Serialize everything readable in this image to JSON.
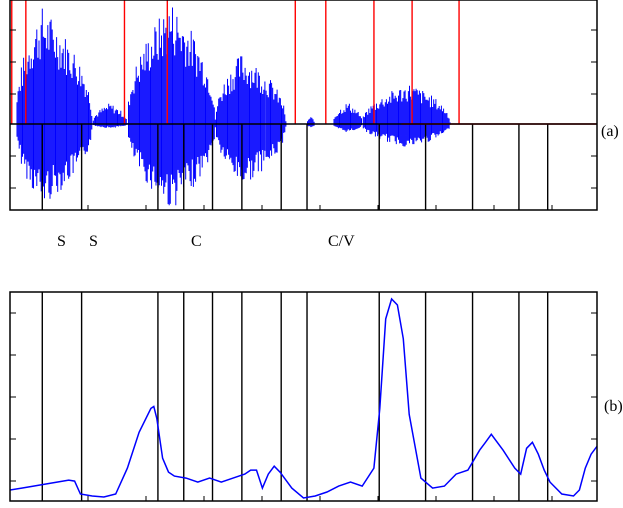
{
  "chart_data": [
    {
      "panel_label": "(a)",
      "type": "line",
      "description_kind": "waveform",
      "x_range": [
        0,
        100
      ],
      "y_range": [
        -1,
        1
      ],
      "grid": false,
      "waveform_color": "#0000ff",
      "marker_color": "#ff0000",
      "segment_color": "#000000",
      "waveform_segments": [
        {
          "x": [
            0.0,
            1.0
          ],
          "amp_top": 0.0,
          "amp_bot": 0.0
        },
        {
          "x": [
            1.0,
            14.0
          ],
          "amp_top": 0.95,
          "amp_bot": 0.95,
          "peak_at": 5.5
        },
        {
          "x": [
            14.0,
            20.0
          ],
          "amp_top": 0.17,
          "amp_bot": 0.05
        },
        {
          "x": [
            20.0,
            35.0
          ],
          "amp_top": 1.0,
          "amp_bot": 1.0,
          "peak_at": 27.5
        },
        {
          "x": [
            35.0,
            47.0
          ],
          "amp_top": 0.58,
          "amp_bot": 0.72,
          "peak_at": 39.5
        },
        {
          "x": [
            50.5,
            52.0
          ],
          "amp_top": 0.06,
          "amp_bot": 0.04
        },
        {
          "x": [
            55.0,
            60.0
          ],
          "amp_top": 0.18,
          "amp_bot": 0.1
        },
        {
          "x": [
            60.0,
            75.0
          ],
          "amp_top": 0.33,
          "amp_bot": 0.28,
          "peak_at": 68
        }
      ],
      "red_markers": [
        0.3,
        2.7,
        19.5,
        26.8,
        48.6,
        53.8,
        62.0,
        68.5,
        76.5
      ],
      "red_baseline_segment": [
        66.7,
        100
      ],
      "segment_boundaries": [
        5.5,
        12.2,
        25.2,
        29.6,
        34.5,
        39.5,
        46.2,
        50.6,
        62.9,
        70.8,
        78.8,
        86.7,
        91.6
      ],
      "segment_labels": [
        {
          "text": "S",
          "x": 5.5
        },
        {
          "text": "S",
          "x": 11.2
        },
        {
          "text": "C",
          "x": 30.0
        },
        {
          "text": "C/V",
          "x": 62.0
        }
      ]
    },
    {
      "panel_label": "(b)",
      "type": "line",
      "x_range": [
        0,
        100
      ],
      "y_range": [
        0,
        1
      ],
      "grid": false,
      "line_color": "#0000ff",
      "segment_boundaries": [
        5.5,
        12.2,
        25.2,
        29.6,
        34.5,
        39.5,
        46.2,
        50.6,
        62.9,
        70.8,
        78.8,
        86.7,
        91.6
      ],
      "x": [
        0,
        2,
        4,
        6,
        8,
        10,
        11,
        12,
        14,
        16,
        18,
        20,
        22,
        24,
        24.5,
        25,
        26,
        27,
        28,
        30,
        32,
        34,
        36,
        38,
        40,
        41,
        42,
        43,
        44,
        45,
        46,
        48,
        50,
        52,
        54,
        56,
        58,
        60,
        62,
        63,
        64,
        65,
        66,
        67,
        68,
        70,
        72,
        74,
        76,
        78,
        80,
        81,
        82,
        84,
        86,
        87,
        88,
        89,
        90,
        91,
        92,
        94,
        96,
        97,
        98,
        99,
        100
      ],
      "y": [
        0.04,
        0.05,
        0.06,
        0.07,
        0.08,
        0.09,
        0.085,
        0.02,
        0.01,
        0.005,
        0.02,
        0.15,
        0.33,
        0.45,
        0.46,
        0.4,
        0.2,
        0.13,
        0.11,
        0.1,
        0.08,
        0.1,
        0.08,
        0.1,
        0.12,
        0.14,
        0.14,
        0.05,
        0.12,
        0.16,
        0.13,
        0.05,
        0.0,
        0.01,
        0.03,
        0.06,
        0.08,
        0.06,
        0.15,
        0.45,
        0.9,
        1.0,
        0.97,
        0.8,
        0.42,
        0.1,
        0.05,
        0.06,
        0.12,
        0.14,
        0.24,
        0.28,
        0.32,
        0.24,
        0.15,
        0.12,
        0.25,
        0.28,
        0.22,
        0.14,
        0.08,
        0.02,
        0.01,
        0.04,
        0.15,
        0.22,
        0.26
      ]
    }
  ],
  "labels": {
    "panel_a": "(a)",
    "panel_b": "(b)",
    "seg_1": "S",
    "seg_2": "S",
    "seg_3": "C",
    "seg_4": "C/V"
  }
}
